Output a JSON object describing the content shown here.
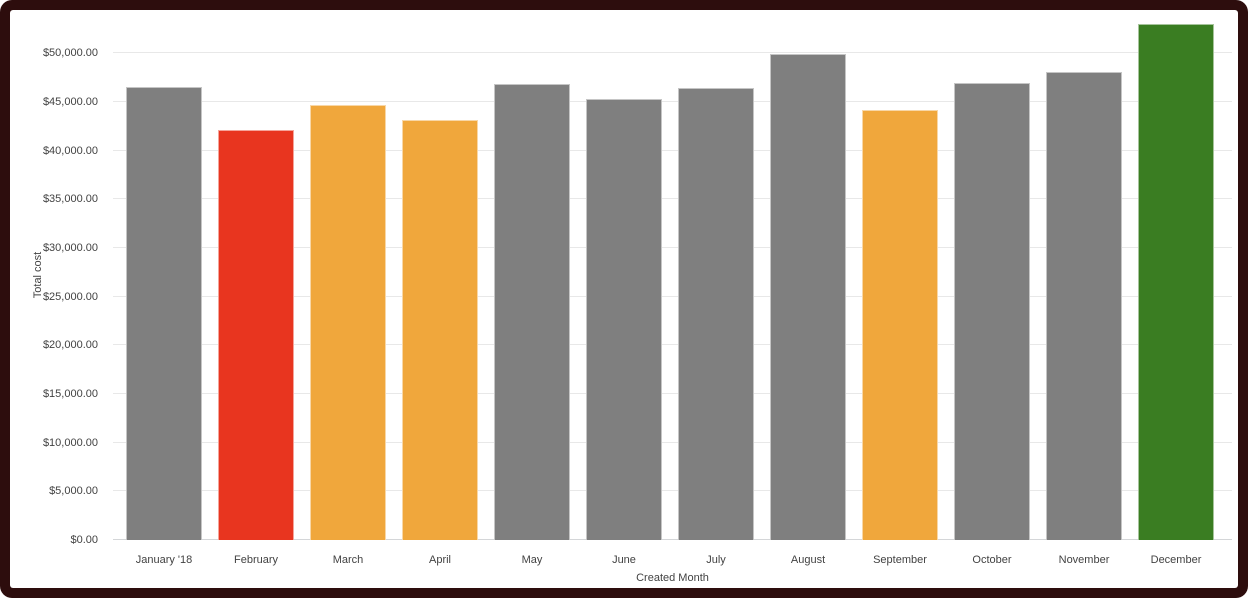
{
  "frame": {
    "border_color": "#2D0D0D",
    "background_color": "#FFFFFF"
  },
  "chart_data": {
    "type": "bar",
    "title": "",
    "xlabel": "Created Month",
    "ylabel": "Total cost",
    "categories": [
      "January '18",
      "February",
      "March",
      "April",
      "May",
      "June",
      "July",
      "August",
      "September",
      "October",
      "November",
      "December"
    ],
    "values": [
      46500,
      42100,
      44700,
      43100,
      46800,
      45300,
      46400,
      49900,
      44200,
      47000,
      48100,
      53000
    ],
    "bar_colors": [
      "#7F7F7F",
      "#E8351F",
      "#F0A73C",
      "#F0A73C",
      "#7F7F7F",
      "#7F7F7F",
      "#7F7F7F",
      "#7F7F7F",
      "#F0A73C",
      "#7F7F7F",
      "#7F7F7F",
      "#3A7D22"
    ],
    "color_legend": {
      "gray": "#7F7F7F",
      "red": "#E8351F",
      "orange": "#F0A73C",
      "green": "#3A7D22"
    },
    "ylim": [
      0,
      54450
    ],
    "y_tick_values": [
      0,
      5000,
      10000,
      15000,
      20000,
      25000,
      30000,
      35000,
      40000,
      45000,
      50000
    ],
    "y_tick_labels": [
      "$0.00",
      "$5,000.00",
      "$10,000.00",
      "$15,000.00",
      "$20,000.00",
      "$25,000.00",
      "$30,000.00",
      "$35,000.00",
      "$40,000.00",
      "$45,000.00",
      "$50,000.00"
    ],
    "grid": "horizontal",
    "legend_position": "none"
  }
}
